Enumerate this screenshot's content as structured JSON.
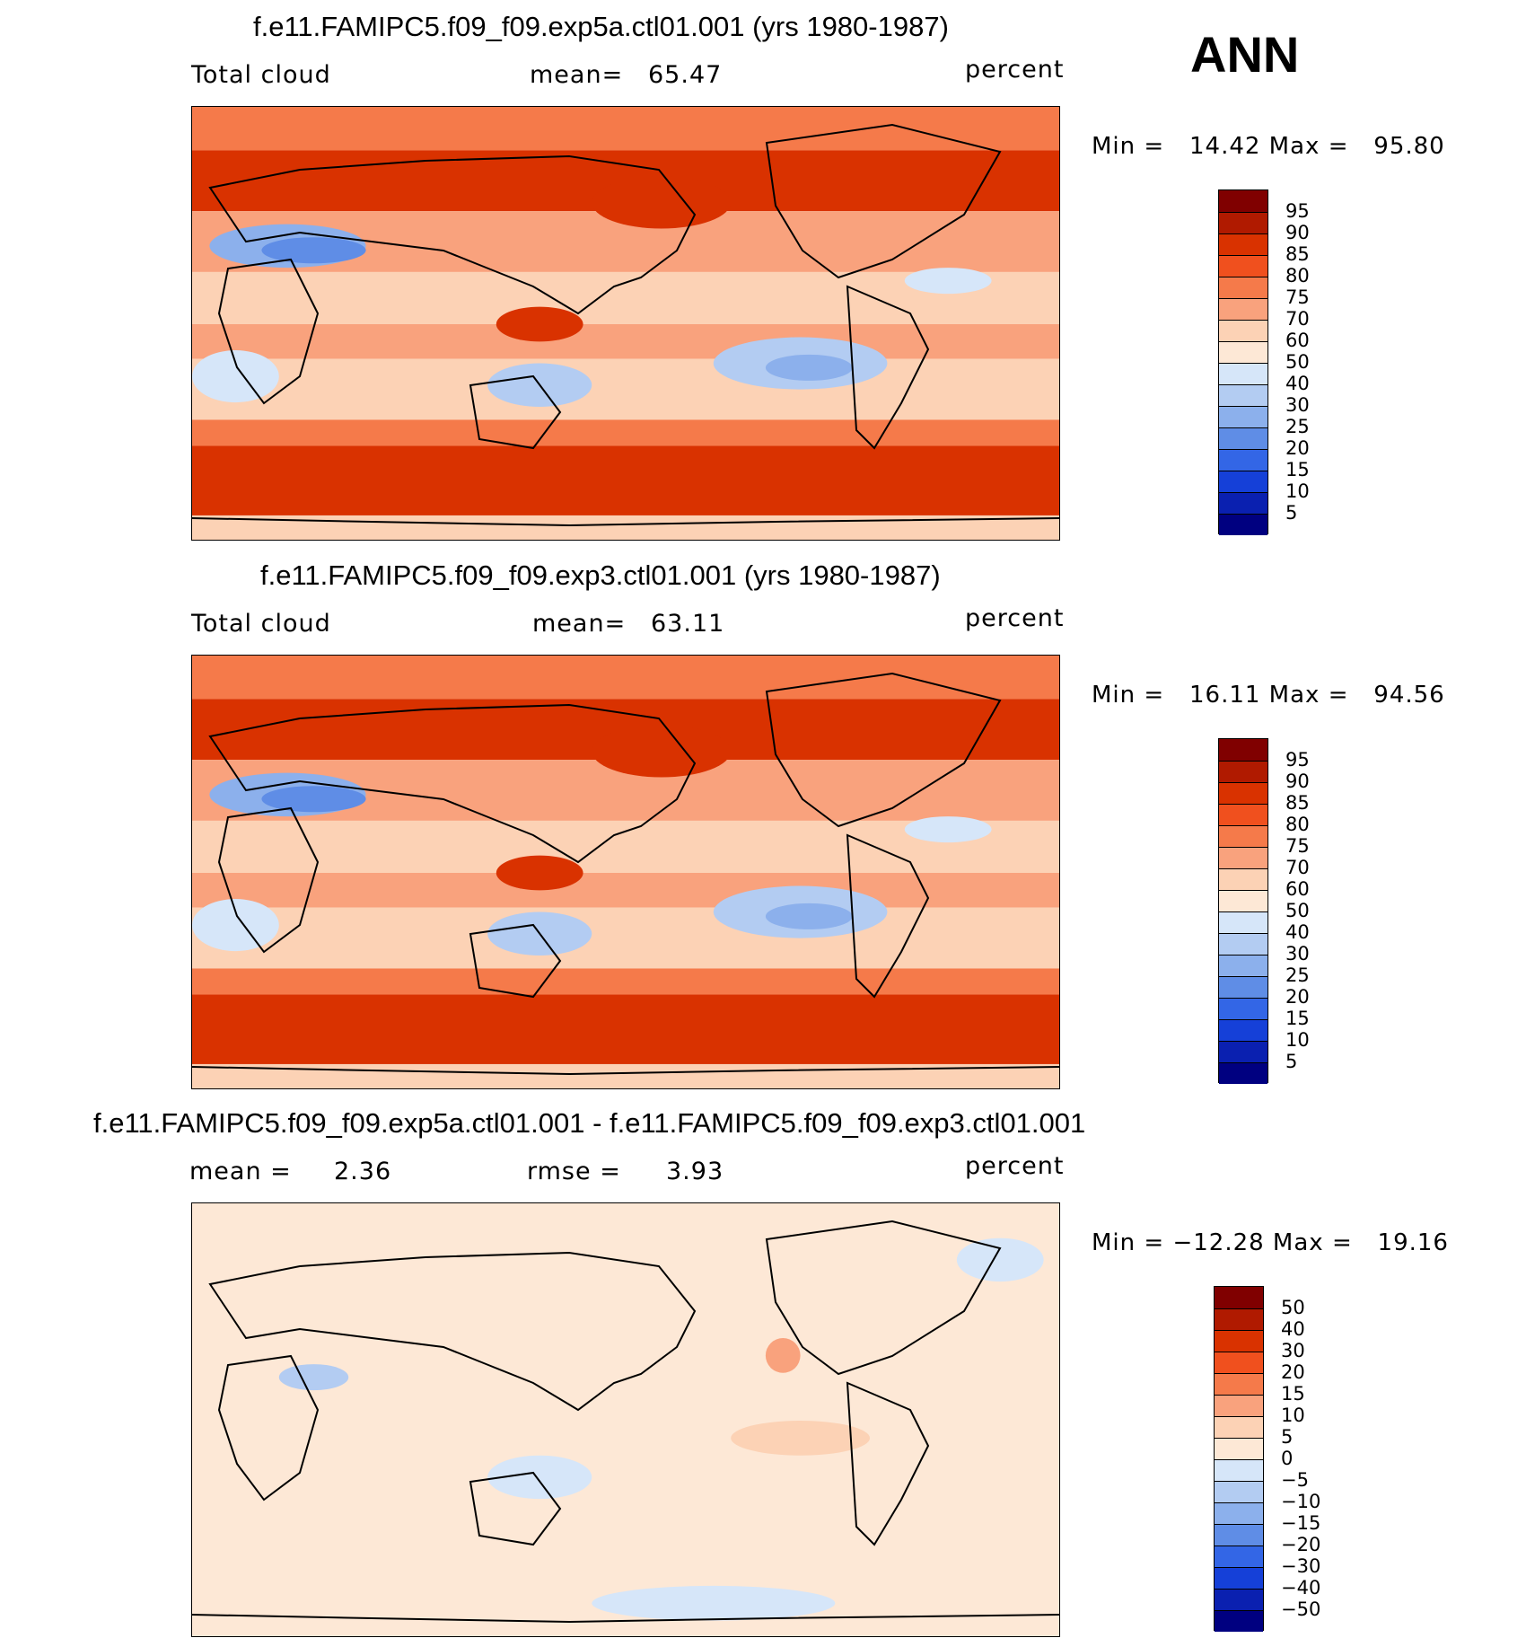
{
  "season": "ANN",
  "panels": [
    {
      "title": "f.e11.FAMIPC5.f09_f09.exp5a.ctl01.001 (yrs 1980-1987)",
      "left_label": "Total cloud",
      "mean_label": "mean=",
      "mean_value": "65.47",
      "mid_label": "",
      "mid_value": "",
      "units": "percent",
      "min_text": "Min =   14.42 Max =   95.80",
      "colorbar": {
        "labels": [
          "95",
          "90",
          "85",
          "80",
          "75",
          "70",
          "60",
          "50",
          "40",
          "30",
          "25",
          "20",
          "15",
          "10",
          "5"
        ],
        "colors": [
          "#800000",
          "#b01a00",
          "#d93200",
          "#f0501e",
          "#f57a4a",
          "#f9a27d",
          "#fcd2b5",
          "#fde8d6",
          "#d6e6f9",
          "#b3ccf2",
          "#8cb0ec",
          "#5f8de6",
          "#3366e6",
          "#1540d8",
          "#0a20b0",
          "#000080"
        ]
      },
      "field": "abs"
    },
    {
      "title": "f.e11.FAMIPC5.f09_f09.exp3.ctl01.001 (yrs 1980-1987)",
      "left_label": "Total cloud",
      "mean_label": "mean=",
      "mean_value": "63.11",
      "mid_label": "",
      "mid_value": "",
      "units": "percent",
      "min_text": "Min =   16.11 Max =   94.56",
      "colorbar": {
        "labels": [
          "95",
          "90",
          "85",
          "80",
          "75",
          "70",
          "60",
          "50",
          "40",
          "30",
          "25",
          "20",
          "15",
          "10",
          "5"
        ],
        "colors": [
          "#800000",
          "#b01a00",
          "#d93200",
          "#f0501e",
          "#f57a4a",
          "#f9a27d",
          "#fcd2b5",
          "#fde8d6",
          "#d6e6f9",
          "#b3ccf2",
          "#8cb0ec",
          "#5f8de6",
          "#3366e6",
          "#1540d8",
          "#0a20b0",
          "#000080"
        ]
      },
      "field": "abs"
    },
    {
      "title": "f.e11.FAMIPC5.f09_f09.exp5a.ctl01.001 - f.e11.FAMIPC5.f09_f09.exp3.ctl01.001",
      "left_label": "mean =",
      "mean_label": "",
      "mean_value": "2.36",
      "mid_label": "rmse =",
      "mid_value": "3.93",
      "units": "percent",
      "min_text": "Min = −12.28 Max =   19.16",
      "colorbar": {
        "labels": [
          "50",
          "40",
          "30",
          "20",
          "15",
          "10",
          "5",
          "0",
          "−5",
          "−10",
          "−15",
          "−20",
          "−30",
          "−40",
          "−50"
        ],
        "colors": [
          "#800000",
          "#b01a00",
          "#d93200",
          "#f0501e",
          "#f57a4a",
          "#f9a27d",
          "#fcd2b5",
          "#fde8d6",
          "#d6e6f9",
          "#b3ccf2",
          "#8cb0ec",
          "#5f8de6",
          "#3366e6",
          "#1540d8",
          "#0a20b0",
          "#000080"
        ]
      },
      "field": "diff"
    }
  ]
}
